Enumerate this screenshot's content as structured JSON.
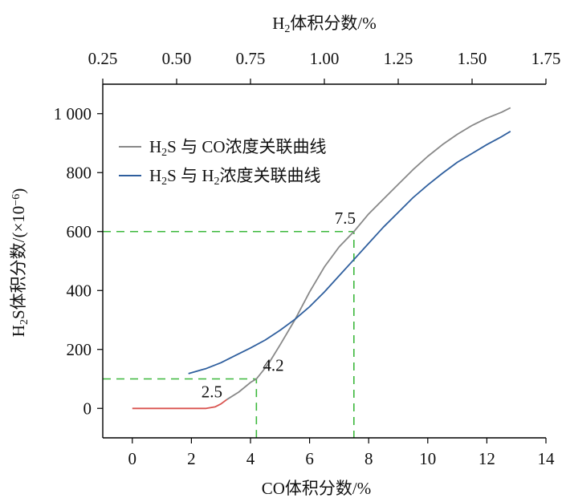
{
  "chart_data": {
    "type": "line",
    "x_bottom": {
      "label": "CO体积分数/%",
      "range": [
        -1,
        14
      ],
      "ticks": [
        0,
        2,
        4,
        6,
        8,
        10,
        12,
        14
      ]
    },
    "x_top": {
      "label_parts": [
        "H",
        "2",
        "体积分数/%"
      ],
      "range": [
        0.25,
        1.75
      ],
      "ticks": [
        "0.25",
        "0.50",
        "0.75",
        "1.00",
        "1.25",
        "1.50",
        "1.75"
      ]
    },
    "y": {
      "label_parts": [
        "H",
        "2",
        "S体积分数/(×10",
        "−6",
        ")"
      ],
      "range": [
        -100,
        1100
      ],
      "ticks": [
        "0",
        "200",
        "400",
        "600",
        "800",
        "1 000"
      ],
      "tick_values": [
        0,
        200,
        400,
        600,
        800,
        1000
      ]
    },
    "legend": {
      "placement": "top-left",
      "entries": [
        {
          "parts": [
            "H",
            "2",
            "S 与 CO浓度关联曲线"
          ],
          "color": "#888888"
        },
        {
          "parts": [
            "H",
            "2",
            "S 与 H",
            "2",
            "浓度关联曲线"
          ],
          "color": "#2f5f9e"
        }
      ]
    },
    "series": [
      {
        "key": "co",
        "color": "#888888",
        "axis": "bottom",
        "points": [
          [
            3.2,
            30
          ],
          [
            3.6,
            55
          ],
          [
            4.0,
            88
          ],
          [
            4.2,
            100
          ],
          [
            4.6,
            150
          ],
          [
            5.0,
            215
          ],
          [
            5.5,
            300
          ],
          [
            6.0,
            395
          ],
          [
            6.5,
            480
          ],
          [
            7.0,
            548
          ],
          [
            7.5,
            600
          ],
          [
            8.0,
            660
          ],
          [
            8.5,
            710
          ],
          [
            9.0,
            760
          ],
          [
            9.5,
            810
          ],
          [
            10.0,
            855
          ],
          [
            10.5,
            895
          ],
          [
            11.0,
            930
          ],
          [
            11.5,
            960
          ],
          [
            12.0,
            985
          ],
          [
            12.5,
            1005
          ],
          [
            12.8,
            1020
          ]
        ]
      },
      {
        "key": "h2",
        "color": "#2f5f9e",
        "axis": "bottom",
        "points": [
          [
            1.9,
            118
          ],
          [
            2.5,
            135
          ],
          [
            3.0,
            155
          ],
          [
            3.5,
            180
          ],
          [
            4.0,
            205
          ],
          [
            4.5,
            232
          ],
          [
            5.0,
            265
          ],
          [
            5.5,
            302
          ],
          [
            6.0,
            345
          ],
          [
            6.5,
            395
          ],
          [
            7.0,
            450
          ],
          [
            7.5,
            505
          ],
          [
            8.0,
            560
          ],
          [
            8.5,
            615
          ],
          [
            9.0,
            665
          ],
          [
            9.5,
            715
          ],
          [
            10.0,
            758
          ],
          [
            10.5,
            798
          ],
          [
            11.0,
            835
          ],
          [
            11.5,
            865
          ],
          [
            12.0,
            895
          ],
          [
            12.5,
            922
          ],
          [
            12.8,
            940
          ]
        ]
      },
      {
        "key": "low",
        "color": "#d9534f",
        "axis": "bottom",
        "points": [
          [
            0,
            0
          ],
          [
            0.5,
            0
          ],
          [
            1.0,
            0
          ],
          [
            1.5,
            0
          ],
          [
            2.0,
            0
          ],
          [
            2.5,
            0
          ],
          [
            2.8,
            5
          ],
          [
            3.0,
            15
          ],
          [
            3.2,
            30
          ]
        ]
      }
    ],
    "guides": [
      {
        "x": 4.2,
        "y": 100
      },
      {
        "x": 7.5,
        "y": 600
      }
    ],
    "annotations": [
      {
        "text": "2.5",
        "x": 2.5,
        "y": 0
      },
      {
        "text": "4.2",
        "x": 4.2,
        "y": 100
      },
      {
        "text": "7.5",
        "x": 7.5,
        "y": 600
      }
    ]
  }
}
